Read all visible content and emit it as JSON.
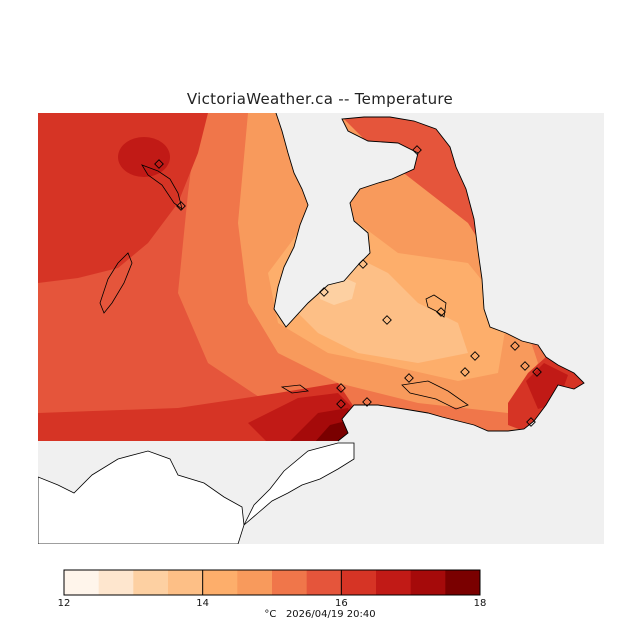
{
  "title": "VictoriaWeather.ca -- Temperature",
  "legend": {
    "min": 12,
    "max": 18,
    "steps": 12,
    "ticks": [
      "12",
      "14",
      "16",
      "18"
    ],
    "colors": [
      "#fff5eb",
      "#fee6ce",
      "#fdd0a2",
      "#fdbf86",
      "#fdae6b",
      "#f89a5c",
      "#f0764a",
      "#e5553b",
      "#d63425",
      "#c11a16",
      "#a50a0a",
      "#7a0000"
    ],
    "unit": "°C",
    "timestamp": "2026/04/19 20:40"
  },
  "map_colors": {
    "water": "#f0f0f0",
    "outside": "#ffffff",
    "coastline": "#000000"
  }
}
